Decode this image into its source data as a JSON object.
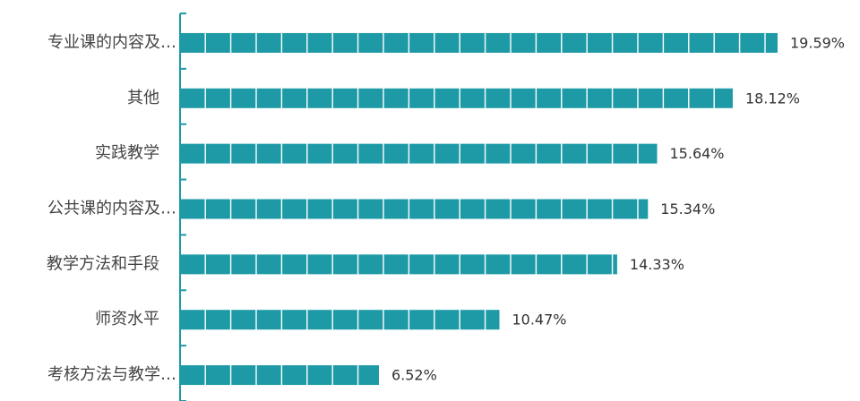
{
  "chart_data": {
    "type": "bar",
    "orientation": "horizontal",
    "categories": [
      "专业课的内容及…",
      "其他",
      "实践教学",
      "公共课的内容及…",
      "教学方法和手段",
      "师资水平",
      "考核方法与教学…"
    ],
    "values": [
      19.59,
      18.12,
      15.64,
      15.34,
      14.33,
      10.47,
      6.52
    ],
    "value_labels": [
      "19.59%",
      "18.12%",
      "15.64%",
      "15.34%",
      "14.33%",
      "10.47%",
      "6.52%"
    ],
    "color": "#1e9aa6"
  }
}
